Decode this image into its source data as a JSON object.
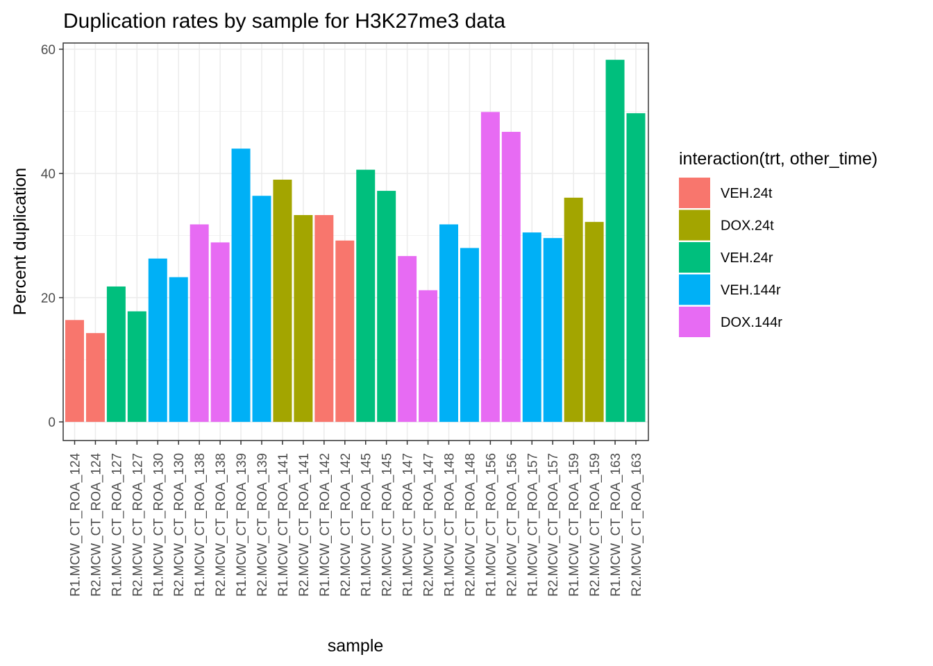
{
  "chart_data": {
    "type": "bar",
    "title": "Duplication rates by sample for H3K27me3 data",
    "xlabel": "sample",
    "ylabel": "Percent duplication",
    "ylim": [
      -3,
      61
    ],
    "yticks": [
      "0",
      "20",
      "40",
      "60"
    ],
    "ytick_values": [
      0,
      20,
      40,
      60
    ],
    "grid": true,
    "legend_position": "right",
    "legend": {
      "title": "interaction(trt, other_time)",
      "entries": [
        {
          "label": "VEH.24t",
          "color": "#F8766D"
        },
        {
          "label": "DOX.24t",
          "color": "#A3A500"
        },
        {
          "label": "VEH.24r",
          "color": "#00BF7D"
        },
        {
          "label": "VEH.144r",
          "color": "#00B0F6"
        },
        {
          "label": "DOX.144r",
          "color": "#E76BF3"
        }
      ]
    },
    "categories": [
      "R1.MCW_CT_ROA_124",
      "R2.MCW_CT_ROA_124",
      "R1.MCW_CT_ROA_127",
      "R2.MCW_CT_ROA_127",
      "R1.MCW_CT_ROA_130",
      "R2.MCW_CT_ROA_130",
      "R1.MCW_CT_ROA_138",
      "R2.MCW_CT_ROA_138",
      "R1.MCW_CT_ROA_139",
      "R2.MCW_CT_ROA_139",
      "R1.MCW_CT_ROA_141",
      "R2.MCW_CT_ROA_141",
      "R1.MCW_CT_ROA_142",
      "R2.MCW_CT_ROA_142",
      "R1.MCW_CT_ROA_145",
      "R2.MCW_CT_ROA_145",
      "R1.MCW_CT_ROA_147",
      "R2.MCW_CT_ROA_147",
      "R1.MCW_CT_ROA_148",
      "R2.MCW_CT_ROA_148",
      "R1.MCW_CT_ROA_156",
      "R2.MCW_CT_ROA_156",
      "R1.MCW_CT_ROA_157",
      "R2.MCW_CT_ROA_157",
      "R1.MCW_CT_ROA_159",
      "R2.MCW_CT_ROA_159",
      "R1.MCW_CT_ROA_163",
      "R2.MCW_CT_ROA_163"
    ],
    "values": [
      16.4,
      14.3,
      21.8,
      17.8,
      26.3,
      23.3,
      31.8,
      28.9,
      44.0,
      36.4,
      39.0,
      33.3,
      33.3,
      29.2,
      40.6,
      37.2,
      26.7,
      21.2,
      31.8,
      28.0,
      49.9,
      46.7,
      30.5,
      29.6,
      36.1,
      32.2,
      58.3,
      49.7
    ],
    "groups": [
      "VEH.24t",
      "VEH.24t",
      "VEH.24r",
      "VEH.24r",
      "VEH.144r",
      "VEH.144r",
      "DOX.144r",
      "DOX.144r",
      "VEH.144r",
      "VEH.144r",
      "DOX.24t",
      "DOX.24t",
      "VEH.24t",
      "VEH.24t",
      "VEH.24r",
      "VEH.24r",
      "DOX.144r",
      "DOX.144r",
      "VEH.144r",
      "VEH.144r",
      "DOX.144r",
      "DOX.144r",
      "VEH.144r",
      "VEH.144r",
      "DOX.24t",
      "DOX.24t",
      "VEH.24r",
      "VEH.24r"
    ]
  }
}
